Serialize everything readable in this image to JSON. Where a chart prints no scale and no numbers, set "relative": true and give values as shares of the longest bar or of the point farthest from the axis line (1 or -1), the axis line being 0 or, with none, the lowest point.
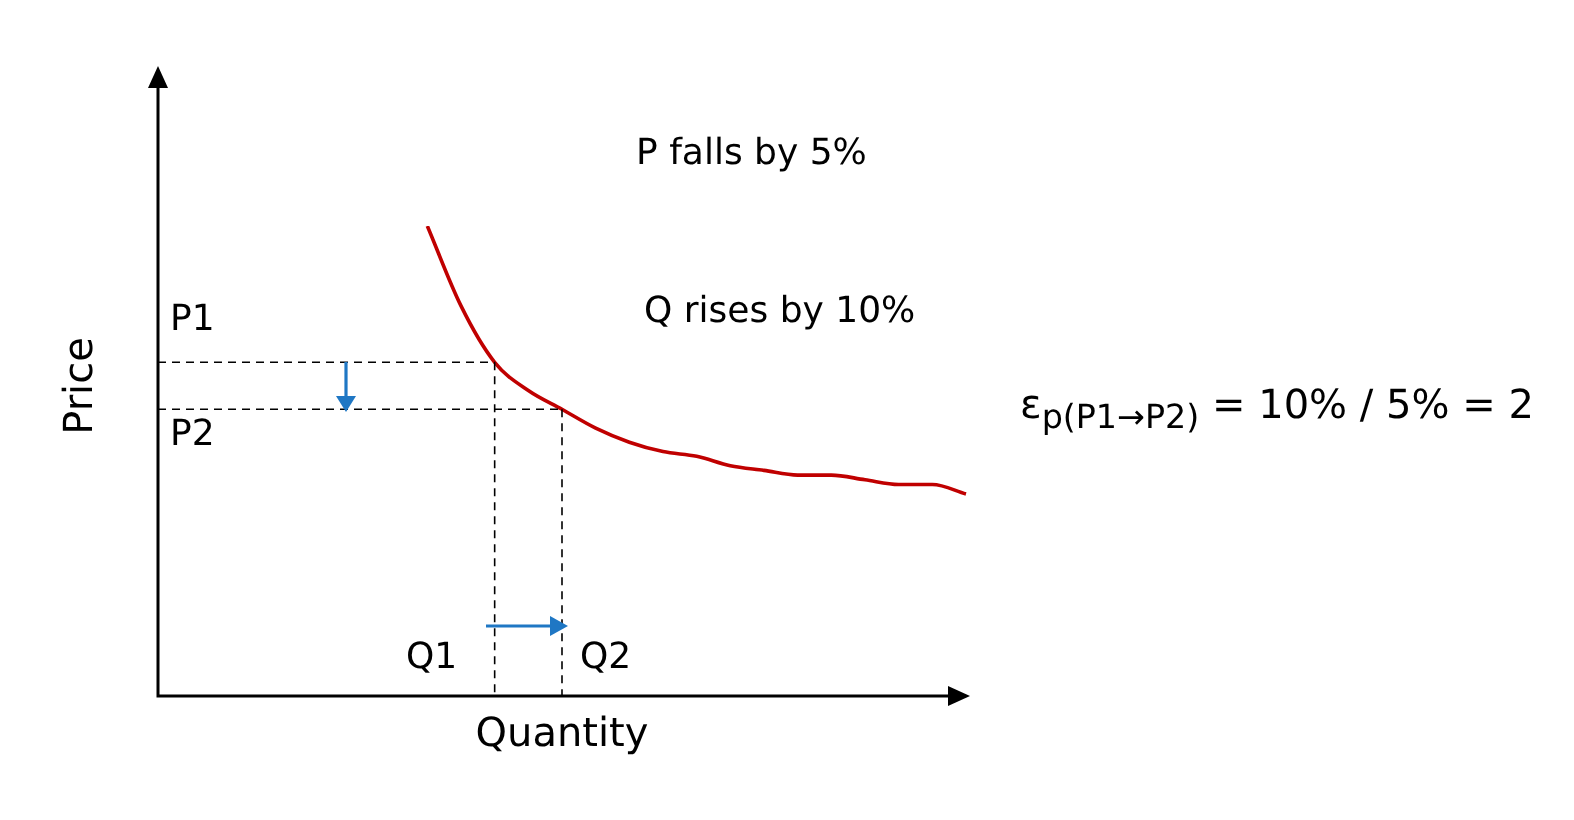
{
  "chart_data": {
    "type": "line",
    "relative": true,
    "xlabel": "Quantity",
    "ylabel": "Price",
    "categories": [
      null,
      null,
      null,
      null,
      null,
      null,
      null,
      null,
      null,
      null,
      null,
      null,
      null,
      null,
      null,
      null,
      null,
      null,
      null,
      null,
      null,
      null,
      null,
      null,
      null
    ],
    "series": [
      {
        "color": "#c00000",
        "values": [
          null,
          null,
          null,
          null,
          null,
          null,
          null,
          null,
          1,
          0.83,
          0.71,
          0.65,
          0.61,
          0.57,
          0.54,
          0.52,
          0.51,
          0.49,
          0.48,
          0.47,
          0.47,
          0.46,
          0.45,
          0.45,
          0.43
        ]
      }
    ],
    "ref_lines": [
      {
        "axis": "y",
        "value": 0.71,
        "label": "P1",
        "line_style": "dashed",
        "color": "#000000"
      },
      {
        "axis": "y",
        "value": 0.61,
        "label": "P2",
        "line_style": "dashed",
        "color": "#000000"
      }
    ],
    "annotations": [
      "P falls by 5%",
      "Q rises by 10%",
      "ε$_{p(P1→P2)}$ = 10% / 5% = 2",
      "Q1",
      "Q2"
    ],
    "legend": false,
    "marker": "none",
    "line_style": "solid"
  }
}
